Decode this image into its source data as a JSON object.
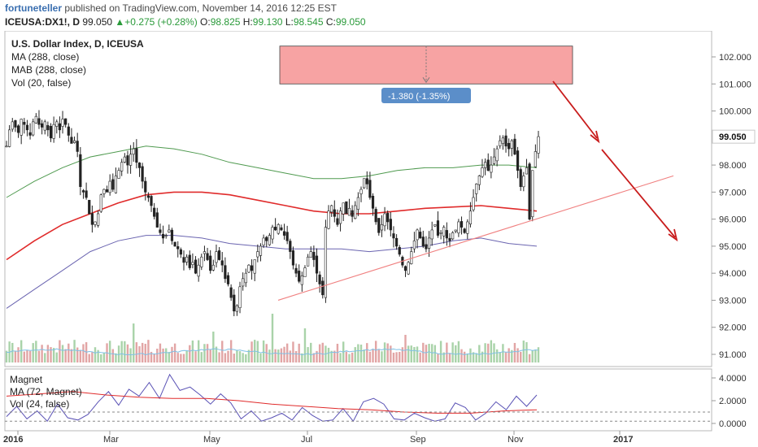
{
  "header": {
    "author": "fortuneteller",
    "published": "published on TradingView.com, November 14, 2016 12:25 EST",
    "symbol": "ICEUSA:DX1!, D",
    "last": "99.050",
    "change_arrow": "▲",
    "change": "+0.275 (+0.28%)",
    "o_label": "O:",
    "o": "98.825",
    "h_label": "H:",
    "h": "99.130",
    "l_label": "L:",
    "l": "98.545",
    "c_label": "C:",
    "c": "99.050"
  },
  "legend_main": [
    "U.S. Dollar Index, D, ICEUSA",
    "MA (288, close)",
    "MAB (288, close)",
    "Vol (20, false)"
  ],
  "legend_sub": [
    "Magnet",
    "MA (72, Magnet)",
    "Vol (24, false)"
  ],
  "colors": {
    "up": "#3a3a3a",
    "ma": "#e02b2b",
    "band_upper": "#4f9a4f",
    "band_lower": "#6a64b0",
    "vol_up": "#a9d3a9",
    "vol_down": "#e2a5a5",
    "vol_ma": "#7fc0e6",
    "magnet": "#5a52b5",
    "trend": "#f08080",
    "arrow": "#c81c1c",
    "box": "#f7a3a3",
    "measure_label": "#5b8ec9"
  },
  "measure_label": "-1.380 (-1.35%)",
  "last_price_label": "99.050",
  "chart_data": {
    "type": "line",
    "x_ticks": [
      "2016",
      "Mar",
      "May",
      "Jul",
      "Sep",
      "Nov",
      "2017"
    ],
    "y_ticks": [
      "102.000",
      "101.000",
      "100.000",
      "98.000",
      "97.000",
      "96.000",
      "95.000",
      "94.000",
      "93.000",
      "92.000",
      "91.000"
    ],
    "ylim": [
      90.5,
      102.5
    ],
    "sub_y_ticks": [
      "4.0000",
      "2.0000",
      "0.0000"
    ],
    "sub_ylim": [
      -0.5,
      4.5
    ],
    "series": [
      {
        "key": "price",
        "values": [
          98.7,
          99.3,
          99.6,
          99.4,
          99.2,
          99.7,
          99.5,
          99.3,
          99.1,
          99.6,
          99.8,
          99.5,
          99.4,
          99.6,
          99.3,
          99.0,
          99.5,
          99.6,
          99.3,
          99.7,
          99.5,
          99.1,
          98.8,
          98.9,
          98.5,
          97.2,
          97.0,
          96.8,
          96.2,
          95.8,
          95.9,
          96.2,
          96.9,
          97.1,
          97.0,
          97.4,
          97.1,
          97.6,
          97.8,
          98.1,
          98.3,
          98.0,
          98.4,
          98.6,
          98.1,
          97.9,
          97.4,
          97.0,
          96.8,
          96.5,
          96.1,
          95.7,
          95.5,
          95.3,
          95.4,
          95.6,
          95.2,
          95.0,
          94.9,
          94.7,
          94.4,
          94.6,
          94.2,
          94.4,
          94.0,
          94.3,
          94.6,
          94.8,
          94.5,
          94.1,
          94.3,
          94.8,
          94.5,
          94.3,
          93.8,
          93.6,
          93.1,
          92.6,
          92.8,
          93.5,
          93.8,
          94.0,
          94.3,
          94.1,
          94.5,
          94.8,
          95.0,
          95.3,
          95.2,
          95.4,
          95.7,
          95.6,
          95.8,
          95.6,
          95.4,
          95.2,
          94.8,
          94.3,
          94.0,
          93.7,
          93.9,
          94.2,
          94.6,
          94.8,
          94.5,
          94.0,
          93.6,
          93.2,
          95.7,
          96.3,
          96.5,
          96.1,
          95.8,
          96.3,
          96.6,
          96.2,
          96.4,
          96.1,
          96.5,
          96.8,
          97.1,
          97.5,
          97.3,
          96.8,
          96.4,
          95.9,
          95.5,
          95.8,
          96.2,
          95.9,
          95.6,
          95.3,
          95.0,
          94.7,
          94.3,
          94.1,
          94.4,
          94.8,
          95.2,
          95.6,
          95.3,
          95.0,
          94.9,
          95.3,
          95.6,
          95.8,
          95.4,
          95.5,
          95.7,
          95.3,
          95.2,
          95.5,
          95.6,
          95.9,
          95.7,
          95.5,
          95.9,
          96.3,
          96.8,
          97.3,
          97.6,
          97.9,
          98.1,
          97.8,
          98.0,
          98.3,
          98.6,
          98.9,
          99.0,
          98.7,
          98.6,
          98.9,
          98.4,
          97.8,
          97.2,
          97.6,
          97.9,
          96.0,
          97.8,
          98.5,
          99.05
        ]
      },
      {
        "key": "ma",
        "values": [
          94.5,
          95.2,
          95.8,
          96.2,
          96.6,
          96.9,
          97.0,
          97.0,
          96.9,
          96.7,
          96.5,
          96.3,
          96.2,
          96.2,
          96.3,
          96.4,
          96.45,
          96.5,
          96.4,
          96.3
        ]
      },
      {
        "key": "band_upper",
        "values": [
          96.8,
          97.4,
          97.9,
          98.3,
          98.5,
          98.7,
          98.6,
          98.4,
          98.1,
          97.9,
          97.7,
          97.5,
          97.5,
          97.6,
          97.8,
          97.9,
          97.9,
          98.0,
          98.0,
          97.9
        ]
      },
      {
        "key": "band_lower",
        "values": [
          92.7,
          93.4,
          94.1,
          94.8,
          95.2,
          95.4,
          95.4,
          95.3,
          95.1,
          95.0,
          94.9,
          94.9,
          94.9,
          94.8,
          94.9,
          95.0,
          95.2,
          95.3,
          95.1,
          95.0
        ]
      },
      {
        "key": "magnet",
        "values": [
          0.6,
          1.5,
          0.4,
          1.1,
          0.2,
          1.7,
          0.5,
          0.3,
          0.8,
          1.9,
          2.8,
          1.6,
          3.0,
          2.4,
          3.6,
          2.2,
          4.3,
          2.9,
          3.2,
          2.5,
          1.7,
          2.6,
          1.8,
          0.4,
          1.1,
          0.2,
          0.5,
          0.9,
          0.3,
          1.4,
          0.7,
          0.2,
          0.3,
          1.3,
          0.2,
          1.9,
          2.2,
          1.7,
          0.4,
          0.3,
          0.9,
          0.5,
          0.2,
          0.4,
          1.8,
          1.4,
          0.3,
          0.9,
          1.9,
          1.2,
          2.4,
          1.5,
          2.5
        ]
      },
      {
        "key": "magnet_ma",
        "values": [
          2.4,
          2.6,
          2.8,
          2.5,
          2.3,
          2.2,
          2.2,
          2.0,
          1.7,
          1.5,
          1.3,
          1.2,
          1.0,
          0.9,
          0.9,
          1.1,
          1.2
        ]
      }
    ],
    "annotations": {
      "measure_box": {
        "from": 102.4,
        "to": 101.0
      },
      "trend_line": {
        "from": 93.0,
        "to": 97.6
      }
    }
  }
}
